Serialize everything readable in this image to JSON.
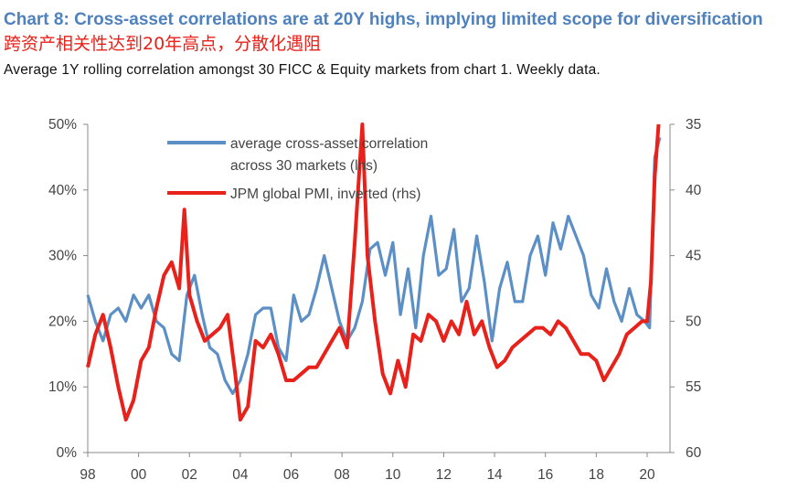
{
  "header": {
    "title_en": "Chart 8: Cross-asset correlations are at 20Y highs, implying limited scope for diversification",
    "title_cn": "跨资产相关性达到20年高点，分散化遇阻",
    "subtitle": "Average 1Y rolling correlation amongst 30 FICC & Equity markets from chart 1. Weekly data."
  },
  "colors": {
    "series_blue": "#5b8fc6",
    "series_red": "#e8211a",
    "axis": "#888888",
    "title_blue": "#4f81bd"
  },
  "chart_data": {
    "type": "line",
    "left_axis": {
      "ticks": [
        "0%",
        "10%",
        "20%",
        "30%",
        "40%",
        "50%"
      ],
      "range": [
        0,
        50
      ],
      "unit": "%"
    },
    "right_axis": {
      "ticks": [
        "35",
        "40",
        "45",
        "50",
        "55",
        "60"
      ],
      "range": [
        35,
        60
      ],
      "inverted": true
    },
    "x_axis": {
      "ticks": [
        "98",
        "00",
        "02",
        "04",
        "06",
        "08",
        "10",
        "12",
        "14",
        "16",
        "18",
        "20"
      ],
      "range": [
        1998,
        2020.9
      ]
    },
    "grid": false,
    "legend": {
      "placement": "top-center",
      "items": [
        {
          "line1": "average cross-asset correlation",
          "line2": "across 30 markets (lhs)"
        },
        {
          "line1": "JPM global PMI, inverted (rhs)",
          "line2": ""
        }
      ]
    },
    "series": [
      {
        "name": "average cross-asset correlation across 30 markets (lhs)",
        "axis": "left",
        "x": [
          1998.0,
          1998.3,
          1998.6,
          1998.9,
          1999.2,
          1999.5,
          1999.8,
          2000.1,
          2000.4,
          2000.7,
          2001.0,
          2001.3,
          2001.6,
          2001.9,
          2002.2,
          2002.5,
          2002.8,
          2003.1,
          2003.4,
          2003.7,
          2004.0,
          2004.3,
          2004.6,
          2004.9,
          2005.2,
          2005.5,
          2005.8,
          2006.1,
          2006.4,
          2006.7,
          2007.0,
          2007.3,
          2007.6,
          2007.9,
          2008.2,
          2008.5,
          2008.8,
          2009.1,
          2009.4,
          2009.7,
          2010.0,
          2010.3,
          2010.6,
          2010.9,
          2011.2,
          2011.5,
          2011.8,
          2012.1,
          2012.4,
          2012.7,
          2013.0,
          2013.3,
          2013.6,
          2013.9,
          2014.2,
          2014.5,
          2014.8,
          2015.1,
          2015.4,
          2015.7,
          2016.0,
          2016.3,
          2016.6,
          2016.9,
          2017.2,
          2017.5,
          2017.8,
          2018.1,
          2018.4,
          2018.7,
          2019.0,
          2019.3,
          2019.6,
          2019.9,
          2020.1,
          2020.3,
          2020.5
        ],
        "values": [
          24,
          20,
          17,
          21,
          22,
          20,
          24,
          22,
          24,
          20,
          19,
          15,
          14,
          24,
          27,
          21,
          16,
          15,
          11,
          9,
          11,
          15,
          21,
          22,
          22,
          16,
          14,
          24,
          20,
          21,
          25,
          30,
          25,
          20,
          17,
          19,
          23,
          31,
          32,
          27,
          32,
          21,
          28,
          19,
          30,
          36,
          27,
          28,
          34,
          23,
          25,
          33,
          26,
          17,
          25,
          29,
          23,
          23,
          30,
          33,
          27,
          35,
          31,
          36,
          33,
          30,
          24,
          22,
          28,
          23,
          20,
          25,
          21,
          20,
          19,
          45,
          48
        ]
      },
      {
        "name": "JPM global PMI, inverted (rhs)",
        "axis": "right",
        "x": [
          1998.0,
          1998.3,
          1998.6,
          1998.9,
          1999.2,
          1999.5,
          1999.8,
          2000.1,
          2000.4,
          2000.7,
          2001.0,
          2001.3,
          2001.6,
          2001.8,
          2002.0,
          2002.3,
          2002.6,
          2002.9,
          2003.2,
          2003.5,
          2003.8,
          2004.0,
          2004.3,
          2004.6,
          2004.9,
          2005.2,
          2005.5,
          2005.8,
          2006.1,
          2006.4,
          2006.7,
          2007.0,
          2007.3,
          2007.6,
          2007.9,
          2008.2,
          2008.5,
          2008.8,
          2009.0,
          2009.3,
          2009.6,
          2009.9,
          2010.2,
          2010.5,
          2010.8,
          2011.1,
          2011.4,
          2011.7,
          2012.0,
          2012.3,
          2012.6,
          2012.9,
          2013.2,
          2013.5,
          2013.8,
          2014.1,
          2014.4,
          2014.7,
          2015.0,
          2015.3,
          2015.6,
          2015.9,
          2016.2,
          2016.5,
          2016.8,
          2017.1,
          2017.4,
          2017.7,
          2018.0,
          2018.3,
          2018.6,
          2018.9,
          2019.2,
          2019.5,
          2019.8,
          2020.0,
          2020.15,
          2020.3,
          2020.45
        ],
        "values": [
          53.5,
          51,
          49.5,
          52,
          55,
          57.5,
          56,
          53,
          52,
          49,
          46.5,
          45.5,
          47.5,
          41.5,
          48,
          50,
          51.5,
          51,
          50.5,
          49.5,
          54,
          57.5,
          56.5,
          51.5,
          52,
          51,
          52.5,
          54.5,
          54.5,
          54,
          53.5,
          53.5,
          52.5,
          51.5,
          50.5,
          52,
          44,
          35,
          45,
          50,
          54,
          55.5,
          53,
          55,
          51,
          51.5,
          49.5,
          50,
          51.5,
          50,
          51,
          48.5,
          51,
          50,
          52,
          53.5,
          53,
          52,
          51.5,
          51,
          50.5,
          50.5,
          51,
          50,
          50.5,
          51.5,
          52.5,
          52.5,
          53,
          54.5,
          53.5,
          52.5,
          51,
          50.5,
          50,
          50,
          47,
          39,
          35
        ]
      }
    ]
  }
}
